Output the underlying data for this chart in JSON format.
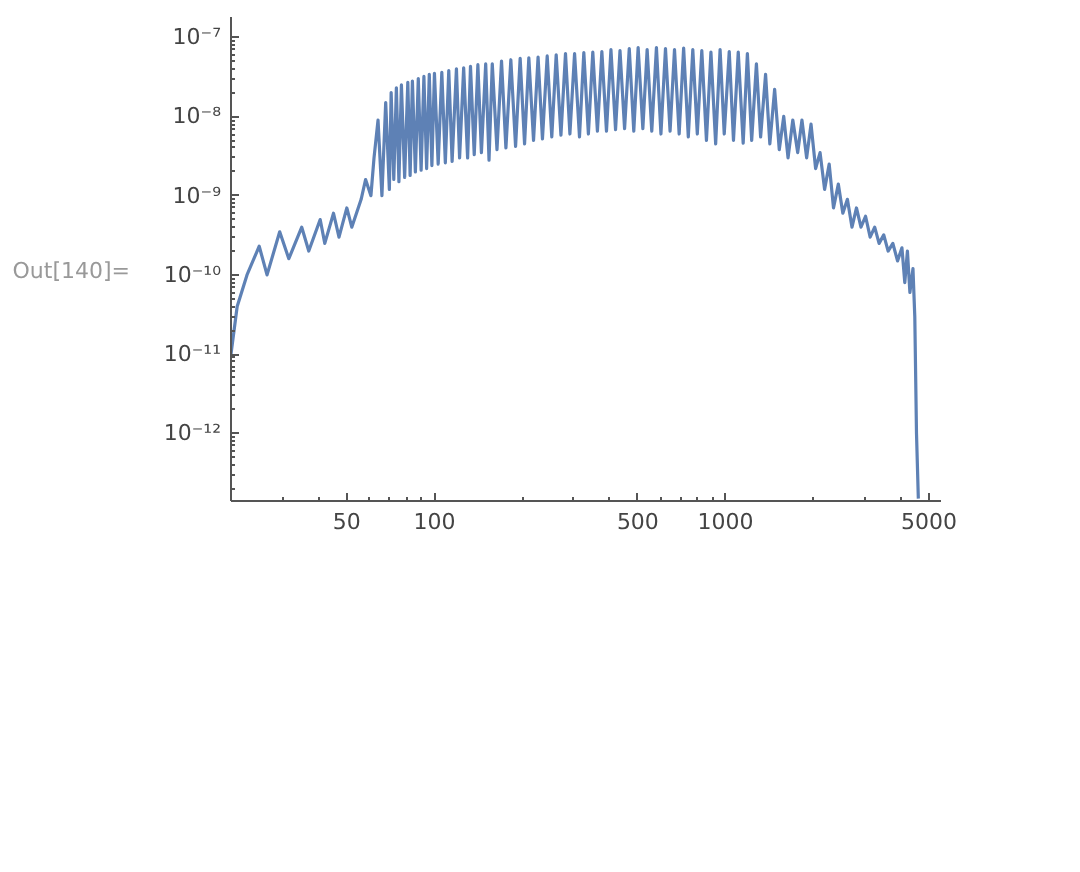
{
  "chart_data": {
    "type": "line",
    "log": "xy",
    "grid": false,
    "marker": "none",
    "line_style": "solid",
    "annotations": [
      "Out[140]="
    ],
    "xlim": [
      20,
      5500
    ],
    "ylim": [
      1.4e-13,
      1.8e-07
    ],
    "xticks": [
      50,
      100,
      500,
      1000,
      5000
    ],
    "yticks": [
      {
        "value": 1e-12,
        "label": "10⁻¹²"
      },
      {
        "value": 1e-11,
        "label": "10⁻¹¹"
      },
      {
        "value": 1e-10,
        "label": "10⁻¹⁰"
      },
      {
        "value": 1e-09,
        "label": "10⁻⁹"
      },
      {
        "value": 1e-08,
        "label": "10⁻⁸"
      },
      {
        "value": 1e-07,
        "label": "10⁻⁷"
      }
    ],
    "series": [
      {
        "color": "#5e81b5",
        "x": [
          20,
          21,
          22.7,
          25,
          26.6,
          29.4,
          31.6,
          35,
          37,
          40.5,
          42,
          45,
          47,
          50,
          52,
          56,
          58,
          60.5,
          62,
          64,
          66,
          68,
          70,
          71,
          72.5,
          74,
          75.5,
          77,
          79,
          81,
          82.5,
          84,
          86,
          88,
          90,
          92,
          94,
          96,
          98,
          100,
          103,
          106,
          109,
          112,
          115,
          119,
          122,
          126,
          130,
          133,
          137,
          141,
          145,
          150,
          154,
          158,
          164,
          170,
          176,
          183,
          190,
          197,
          204,
          211,
          219,
          227,
          235,
          244,
          253,
          262,
          272,
          282,
          292,
          303,
          315,
          326,
          338,
          350,
          363,
          376,
          390,
          404,
          419,
          434,
          450,
          467,
          484,
          501,
          520,
          538,
          558,
          579,
          600,
          622,
          645,
          668,
          693,
          718,
          745,
          772,
          800,
          829,
          860,
          891,
          925,
          958,
          990,
          1030,
          1065,
          1106,
          1150,
          1189,
          1230,
          1277,
          1320,
          1373,
          1420,
          1475,
          1530,
          1585,
          1640,
          1703,
          1770,
          1831,
          1900,
          1967,
          2040,
          2113,
          2190,
          2271,
          2350,
          2441,
          2530,
          2623,
          2720,
          2818,
          2920,
          3028,
          3140,
          3255,
          3370,
          3497,
          3620,
          3758,
          3900,
          4038,
          4130,
          4217,
          4300,
          4406,
          4470,
          4531,
          4597
        ],
        "values": [
          1e-11,
          4e-11,
          1e-10,
          2.3e-10,
          1e-10,
          3.5e-10,
          1.6e-10,
          4e-10,
          2e-10,
          5e-10,
          2.5e-10,
          6e-10,
          3e-10,
          7e-10,
          4e-10,
          9e-10,
          1.6e-09,
          1e-09,
          3e-09,
          9e-09,
          1e-09,
          1.5e-08,
          1.2e-09,
          2e-08,
          1.6e-09,
          2.3e-08,
          1.5e-09,
          2.5e-08,
          1.7e-09,
          2.7e-08,
          1.8e-09,
          2.8e-08,
          2e-09,
          3e-08,
          2.1e-09,
          3.2e-08,
          2.2e-09,
          3.4e-08,
          2.4e-09,
          3.5e-08,
          2.5e-09,
          3.6e-08,
          2.6e-09,
          3.8e-08,
          2.7e-09,
          4e-08,
          3e-09,
          4.1e-08,
          3e-09,
          4.3e-08,
          3.3e-09,
          4.5e-08,
          3.5e-09,
          4.6e-08,
          2.8e-09,
          4.6e-08,
          3.8e-09,
          5e-08,
          4e-09,
          5.2e-08,
          4.2e-09,
          5.4e-08,
          4.5e-09,
          5.5e-08,
          5e-09,
          5.6e-08,
          5.2e-09,
          5.8e-08,
          5.5e-09,
          6e-08,
          5.8e-09,
          6.2e-08,
          6e-09,
          6.2e-08,
          5.5e-09,
          6.4e-08,
          6e-09,
          6.5e-08,
          6.5e-09,
          6.6e-08,
          6.5e-09,
          7e-08,
          6.8e-09,
          6.8e-08,
          7e-09,
          7.2e-08,
          6.5e-09,
          7.4e-08,
          7e-09,
          7e-08,
          6.5e-09,
          7.4e-08,
          6e-09,
          7.2e-08,
          6.5e-09,
          7e-08,
          6e-09,
          7.3e-08,
          5.5e-09,
          7e-08,
          6e-09,
          6.8e-08,
          5e-09,
          6.5e-08,
          4.5e-09,
          7e-08,
          6e-09,
          6.6e-08,
          5e-09,
          6.5e-08,
          4.6e-09,
          6.2e-08,
          5e-09,
          4.6e-08,
          5.5e-09,
          3.4e-08,
          4.5e-09,
          2.2e-08,
          3.8e-09,
          1e-08,
          3e-09,
          9e-09,
          3.5e-09,
          9e-09,
          3e-09,
          8e-09,
          2.2e-09,
          3.5e-09,
          1.2e-09,
          2.5e-09,
          7e-10,
          1.4e-09,
          6e-10,
          9e-10,
          4e-10,
          7e-10,
          4e-10,
          5.5e-10,
          3e-10,
          4e-10,
          2.5e-10,
          3.2e-10,
          2e-10,
          2.5e-10,
          1.5e-10,
          2.2e-10,
          8e-11,
          2e-10,
          6e-11,
          1.2e-10,
          3e-11,
          1e-12,
          1.5e-13
        ]
      }
    ]
  }
}
